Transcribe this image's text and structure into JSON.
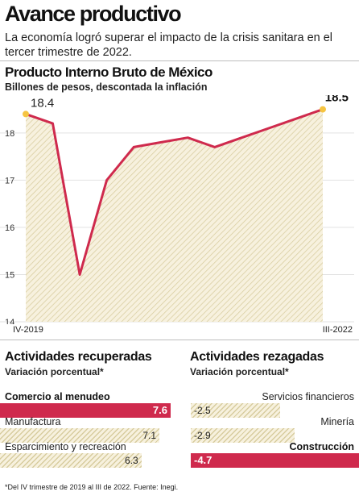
{
  "header": {
    "title": "Avance productivo",
    "subtitle": "La economía logró superar el impacto de la crisis sanitara en el tercer trimestre de 2022."
  },
  "chart_data": [
    {
      "type": "area",
      "title": "Producto Interno Bruto de México",
      "subtitle": "Billones de pesos, descontada la inflación",
      "x_start_label": "IV-2019",
      "x_end_label": "III-2022",
      "x": [
        0,
        1,
        2,
        3,
        4,
        5,
        6,
        7,
        8,
        9,
        10,
        11
      ],
      "values": [
        18.4,
        18.2,
        15.0,
        17.0,
        17.7,
        17.8,
        17.9,
        17.7,
        17.9,
        18.1,
        18.3,
        18.5
      ],
      "start_label": "18.4",
      "end_label": "18.5",
      "yticks": [
        14,
        15,
        16,
        17,
        18
      ],
      "ylim": [
        14,
        18.8
      ],
      "line_color": "#cf2a4d",
      "point_color": "#f5c441",
      "fill": "hatched-beige"
    },
    {
      "type": "bar",
      "title": "Actividades recuperadas",
      "subtitle": "Variación porcentual*",
      "categories": [
        "Comercio al menudeo",
        "Manufactura",
        "Esparcimiento y recreación"
      ],
      "values": [
        7.6,
        7.1,
        6.3
      ],
      "labels": [
        "7.6",
        "7.1",
        "6.3"
      ],
      "highlight": "Comercio al menudeo",
      "highlight_color": "#cf2a4d"
    },
    {
      "type": "bar",
      "title": "Actividades rezagadas",
      "subtitle": "Variación porcentual*",
      "categories": [
        "Servicios financieros",
        "Minería",
        "Construcción"
      ],
      "values": [
        -2.5,
        -2.9,
        -4.7
      ],
      "labels": [
        "-2.5",
        "-2.9",
        "-4.7"
      ],
      "highlight": "Construcción",
      "highlight_color": "#cf2a4d"
    }
  ],
  "footnote": "*Del IV trimestre de 2019 al III de 2022. Fuente: Inegi."
}
